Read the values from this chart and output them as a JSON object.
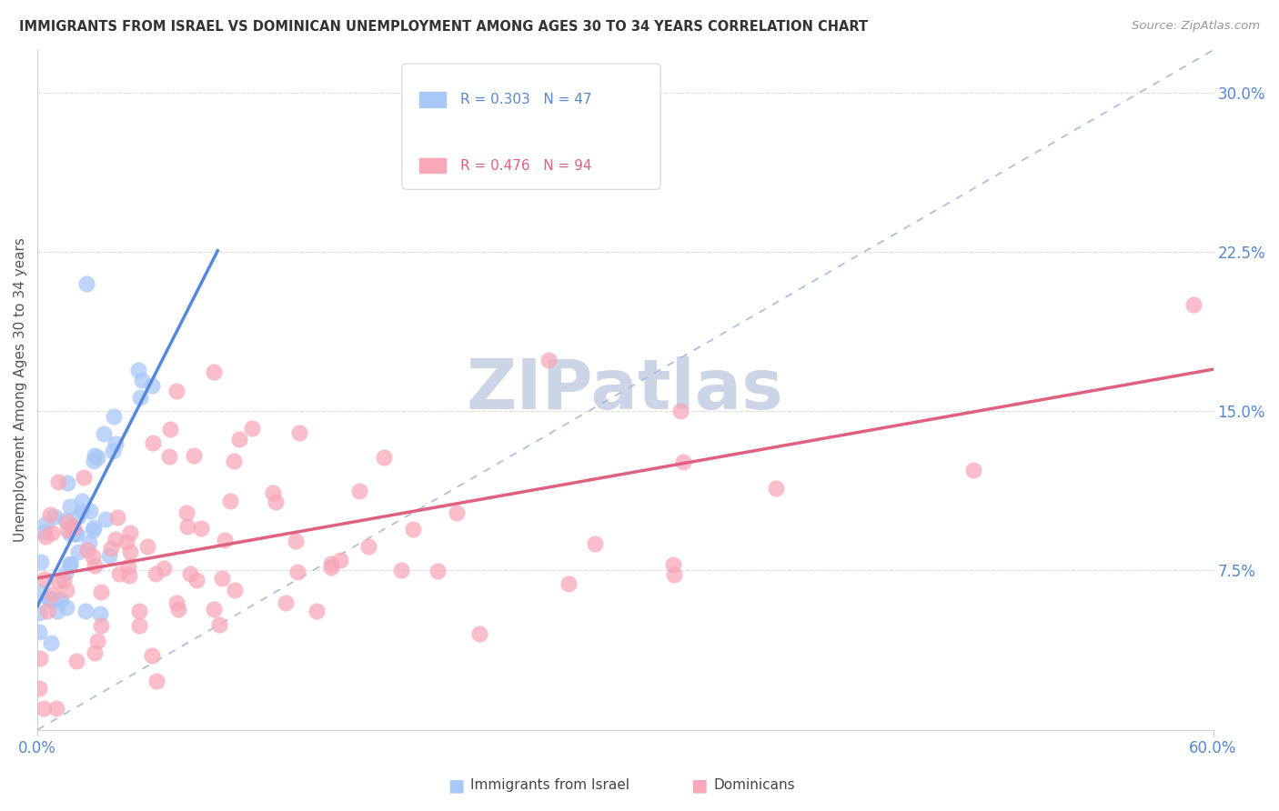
{
  "title": "IMMIGRANTS FROM ISRAEL VS DOMINICAN UNEMPLOYMENT AMONG AGES 30 TO 34 YEARS CORRELATION CHART",
  "source": "Source: ZipAtlas.com",
  "ylabel": "Unemployment Among Ages 30 to 34 years",
  "xlim": [
    0.0,
    0.6
  ],
  "ylim": [
    0.0,
    0.32
  ],
  "israel_color": "#a8c8f8",
  "dominican_color": "#f8a8b8",
  "israel_R": 0.303,
  "israel_N": 47,
  "dominican_R": 0.476,
  "dominican_N": 94,
  "israel_line_color": "#5588dd",
  "dominican_line_color": "#e06080",
  "diagonal_color": "#aabbdd",
  "background_color": "#ffffff",
  "grid_color": "#dddddd",
  "title_color": "#333333",
  "axis_label_color": "#5588cc",
  "legend_label_color_israel": "#5588cc",
  "legend_label_color_dominican": "#e06080",
  "watermark_color": "#ccd4e8"
}
